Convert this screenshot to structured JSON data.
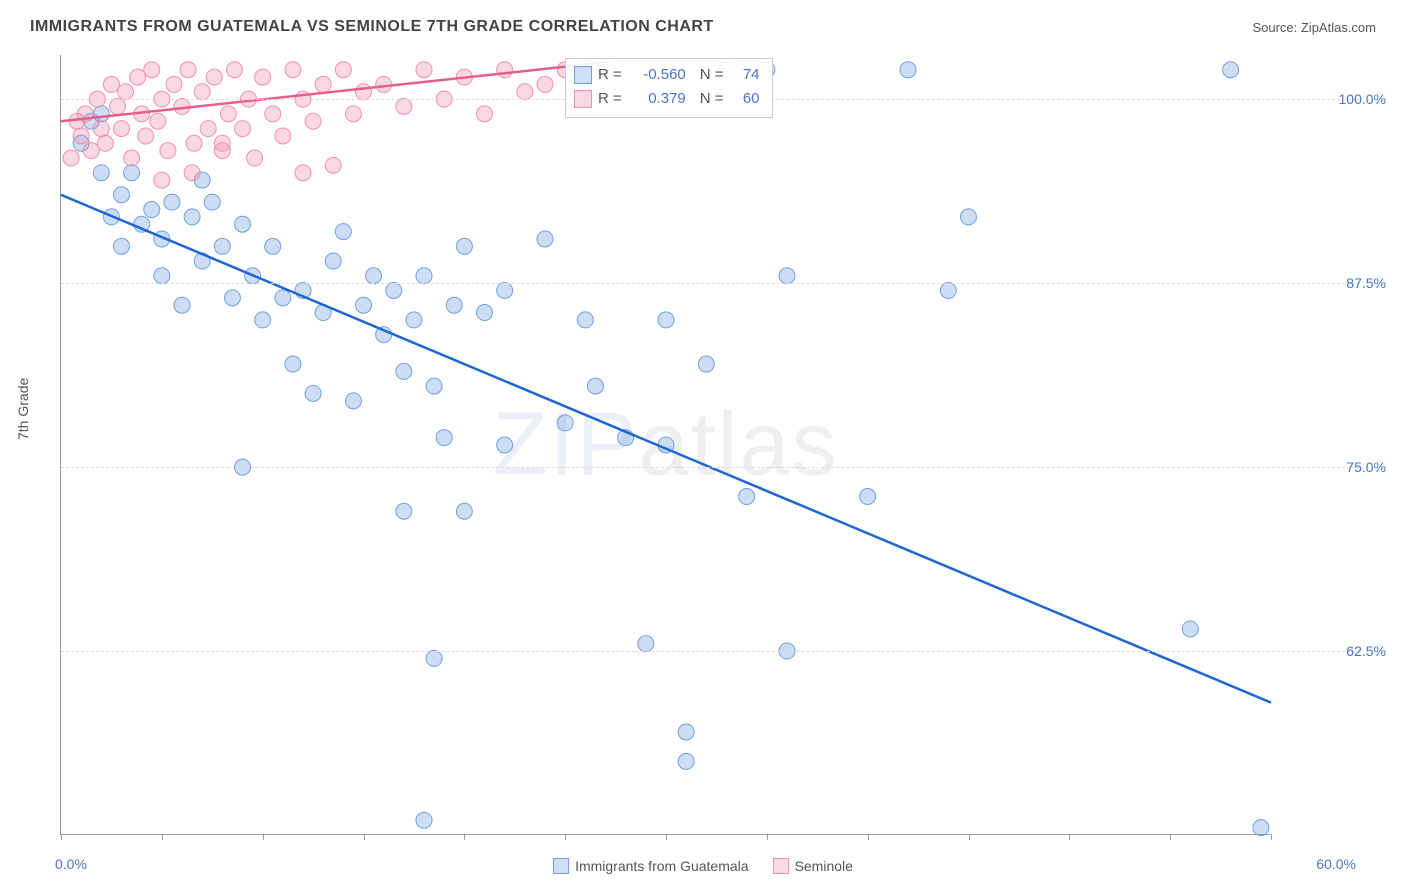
{
  "title": "IMMIGRANTS FROM GUATEMALA VS SEMINOLE 7TH GRADE CORRELATION CHART",
  "source_label": "Source: ",
  "source_name": "ZipAtlas.com",
  "watermark_a": "ZIP",
  "watermark_b": "atlas",
  "ylabel": "7th Grade",
  "chart": {
    "type": "scatter",
    "xlim": [
      0,
      60
    ],
    "ylim": [
      50,
      103
    ],
    "x_tick_step": 5,
    "y_grid": [
      62.5,
      75.0,
      87.5,
      100.0
    ],
    "y_tick_labels": [
      "62.5%",
      "75.0%",
      "87.5%",
      "100.0%"
    ],
    "x_min_label": "0.0%",
    "x_max_label": "60.0%",
    "background_color": "#ffffff",
    "grid_color": "#dddddd",
    "axis_color": "#999999",
    "marker_radius": 8,
    "marker_fill_opacity": 0.35,
    "line_width": 2.5,
    "series": [
      {
        "name": "Immigrants from Guatemala",
        "color": "#6fa0e0",
        "line_color": "#1e66d0",
        "r": "-0.560",
        "n": "74",
        "trend": {
          "x1": 0,
          "y1": 93.5,
          "x2": 60,
          "y2": 59.0
        },
        "points": [
          [
            1,
            97
          ],
          [
            1.5,
            98.5
          ],
          [
            2,
            95
          ],
          [
            2,
            99
          ],
          [
            2.5,
            92
          ],
          [
            3,
            93.5
          ],
          [
            3.5,
            95
          ],
          [
            3,
            90
          ],
          [
            4,
            91.5
          ],
          [
            4.5,
            92.5
          ],
          [
            5,
            88
          ],
          [
            5,
            90.5
          ],
          [
            5.5,
            93
          ],
          [
            6,
            86
          ],
          [
            6.5,
            92
          ],
          [
            7,
            89
          ],
          [
            7,
            94.5
          ],
          [
            7.5,
            93
          ],
          [
            8,
            90
          ],
          [
            8.5,
            86.5
          ],
          [
            9,
            91.5
          ],
          [
            9.5,
            88
          ],
          [
            10,
            85
          ],
          [
            10.5,
            90
          ],
          [
            11,
            86.5
          ],
          [
            11.5,
            82
          ],
          [
            12,
            87
          ],
          [
            12.5,
            80
          ],
          [
            13,
            85.5
          ],
          [
            13.5,
            89
          ],
          [
            14,
            91
          ],
          [
            14.5,
            79.5
          ],
          [
            15,
            86
          ],
          [
            15.5,
            88
          ],
          [
            9,
            75
          ],
          [
            16,
            84
          ],
          [
            16.5,
            87
          ],
          [
            17,
            81.5
          ],
          [
            17.5,
            85
          ],
          [
            18,
            88
          ],
          [
            18.5,
            80.5
          ],
          [
            19,
            77
          ],
          [
            19.5,
            86
          ],
          [
            20,
            90
          ],
          [
            21,
            85.5
          ],
          [
            22,
            87
          ],
          [
            17,
            72
          ],
          [
            20,
            72
          ],
          [
            22,
            76.5
          ],
          [
            24,
            90.5
          ],
          [
            25,
            78
          ],
          [
            26,
            85
          ],
          [
            26.5,
            80.5
          ],
          [
            28,
            77
          ],
          [
            29,
            63
          ],
          [
            30,
            85
          ],
          [
            30,
            76.5
          ],
          [
            31,
            55
          ],
          [
            31,
            57
          ],
          [
            18,
            51
          ],
          [
            18.5,
            62
          ],
          [
            32,
            82
          ],
          [
            33,
            102
          ],
          [
            34,
            73
          ],
          [
            36,
            88
          ],
          [
            35,
            102
          ],
          [
            36,
            62.5
          ],
          [
            42,
            102
          ],
          [
            40,
            73
          ],
          [
            44,
            87
          ],
          [
            56,
            64
          ],
          [
            58,
            102
          ],
          [
            59.5,
            50.5
          ],
          [
            45,
            92
          ]
        ]
      },
      {
        "name": "Seminole",
        "color": "#f190ac",
        "line_color": "#e65f8a",
        "r": "0.379",
        "n": "60",
        "trend": {
          "x1": 0,
          "y1": 98.5,
          "x2": 27,
          "y2": 102.5
        },
        "points": [
          [
            0.5,
            96
          ],
          [
            0.8,
            98.5
          ],
          [
            1,
            97.5
          ],
          [
            1.2,
            99
          ],
          [
            1.5,
            96.5
          ],
          [
            1.8,
            100
          ],
          [
            2,
            98
          ],
          [
            2.2,
            97
          ],
          [
            2.5,
            101
          ],
          [
            2.8,
            99.5
          ],
          [
            3,
            98
          ],
          [
            3.2,
            100.5
          ],
          [
            3.5,
            96
          ],
          [
            3.8,
            101.5
          ],
          [
            4,
            99
          ],
          [
            4.2,
            97.5
          ],
          [
            4.5,
            102
          ],
          [
            4.8,
            98.5
          ],
          [
            5,
            100
          ],
          [
            5.3,
            96.5
          ],
          [
            5.6,
            101
          ],
          [
            6,
            99.5
          ],
          [
            6.3,
            102
          ],
          [
            6.6,
            97
          ],
          [
            7,
            100.5
          ],
          [
            7.3,
            98
          ],
          [
            7.6,
            101.5
          ],
          [
            8,
            96.5
          ],
          [
            8.3,
            99
          ],
          [
            8.6,
            102
          ],
          [
            9,
            98
          ],
          [
            9.3,
            100
          ],
          [
            9.6,
            96
          ],
          [
            10,
            101.5
          ],
          [
            10.5,
            99
          ],
          [
            11,
            97.5
          ],
          [
            11.5,
            102
          ],
          [
            12,
            100
          ],
          [
            12.5,
            98.5
          ],
          [
            13,
            101
          ],
          [
            13.5,
            95.5
          ],
          [
            14,
            102
          ],
          [
            14.5,
            99
          ],
          [
            15,
            100.5
          ],
          [
            12,
            95
          ],
          [
            16,
            101
          ],
          [
            17,
            99.5
          ],
          [
            18,
            102
          ],
          [
            19,
            100
          ],
          [
            20,
            101.5
          ],
          [
            21,
            99
          ],
          [
            22,
            102
          ],
          [
            23,
            100.5
          ],
          [
            24,
            101
          ],
          [
            25,
            102
          ],
          [
            26,
            100
          ],
          [
            27,
            102
          ],
          [
            5,
            94.5
          ],
          [
            6.5,
            95
          ],
          [
            8,
            97
          ]
        ]
      }
    ]
  },
  "legend": {
    "r_label": "R =",
    "n_label": "N ="
  }
}
